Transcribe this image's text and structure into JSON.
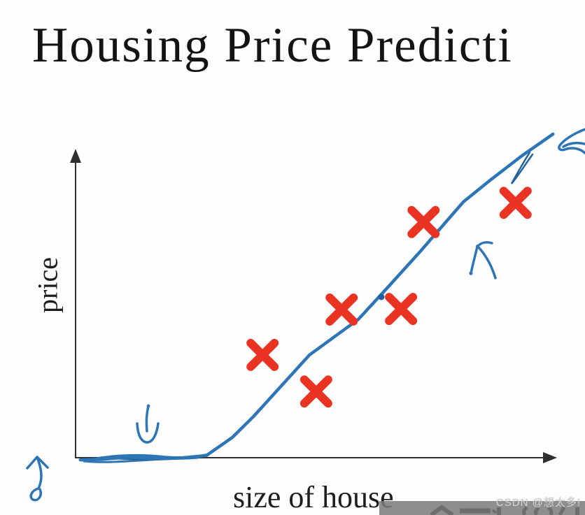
{
  "title": {
    "text": "Housing Price Predicti"
  },
  "watermark": {
    "text": "CSDN @想太多!"
  },
  "colors": {
    "ink_blue": "#2e75b6",
    "ink_blue_dark": "#24629c",
    "marker_red": "#e93323",
    "axis": "#2f2f2f",
    "text": "#1d1d1d",
    "watermark_band": "#7a7a7a",
    "clipped_glyphs": "#232733"
  },
  "ink_annotations": [
    "down-arrow",
    "up-arrow",
    "curved-up-left-arrow",
    "left-pointing-arrowhead"
  ],
  "chart_data": {
    "type": "scatter",
    "title": "Housing Price Predicti",
    "xlabel": "size of house",
    "ylabel": "price",
    "axes_have_tick_labels": false,
    "grid": false,
    "legend": false,
    "xlim": [
      0,
      1
    ],
    "ylim": [
      0,
      1
    ],
    "series": [
      {
        "name": "training-examples",
        "plot": "scatter",
        "marker": "x",
        "color": "#e93323",
        "points": [
          [
            0.39,
            0.335
          ],
          [
            0.502,
            0.216
          ],
          [
            0.555,
            0.483
          ],
          [
            0.679,
            0.485
          ],
          [
            0.726,
            0.768
          ],
          [
            0.918,
            0.831
          ]
        ]
      },
      {
        "name": "hand-drawn-fit-line",
        "plot": "line",
        "color": "#2e75b6",
        "points": [
          [
            0.01,
            -0.007
          ],
          [
            0.054,
            -0.005
          ],
          [
            0.112,
            0.002
          ],
          [
            0.171,
            -0.002
          ],
          [
            0.225,
            0.0
          ],
          [
            0.273,
            0.007
          ],
          [
            0.327,
            0.066
          ],
          [
            0.371,
            0.134
          ],
          [
            0.488,
            0.335
          ],
          [
            0.59,
            0.451
          ],
          [
            0.654,
            0.56
          ],
          [
            0.72,
            0.674
          ],
          [
            0.809,
            0.834
          ],
          [
            0.867,
            0.907
          ],
          [
            0.931,
            0.984
          ],
          [
            0.996,
            1.055
          ]
        ]
      }
    ]
  }
}
